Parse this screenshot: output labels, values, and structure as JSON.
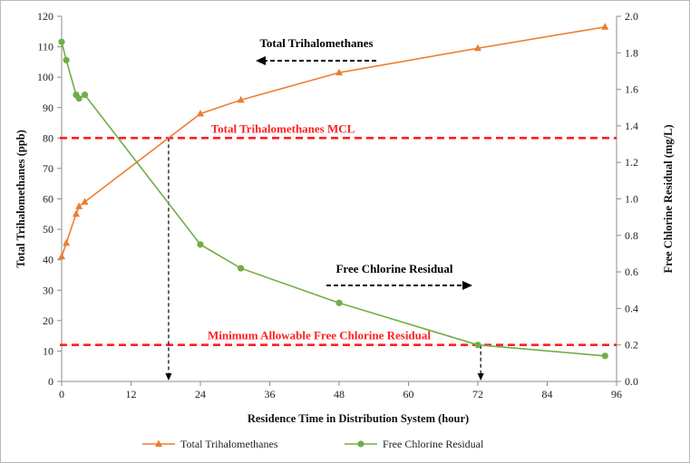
{
  "chart_data": {
    "type": "line",
    "title": "",
    "xlabel": "Residence Time in Distribution System (hour)",
    "ylabel_left": "Total Trihalomethanes (ppb)",
    "ylabel_right": "Free Chlorine Residual (mg/L)",
    "xlim": [
      0,
      96
    ],
    "ylim_left": [
      0,
      120
    ],
    "ylim_right": [
      0,
      2.0
    ],
    "x_ticks": [
      "0",
      "12",
      "24",
      "36",
      "48",
      "60",
      "72",
      "84",
      "96"
    ],
    "y_left_ticks": [
      "0",
      "10",
      "20",
      "30",
      "40",
      "50",
      "60",
      "70",
      "80",
      "90",
      "100",
      "110",
      "120"
    ],
    "y_right_ticks": [
      "0.0",
      "0.2",
      "0.4",
      "0.6",
      "0.8",
      "1.0",
      "1.2",
      "1.4",
      "1.6",
      "1.8",
      "2.0"
    ],
    "grid": false,
    "legend_position": "bottom",
    "series": [
      {
        "name": "Total Trihalomethanes",
        "axis": "left",
        "color": "#ed7d31",
        "marker": "triangle",
        "x": [
          0,
          0.8,
          2.5,
          3.0,
          4.0,
          24,
          31,
          48,
          72,
          94
        ],
        "y": [
          41,
          45.5,
          55,
          57.5,
          59,
          88,
          92.5,
          101.5,
          109.5,
          116.5
        ]
      },
      {
        "name": "Free Chlorine Residual",
        "axis": "right",
        "color": "#70ad47",
        "marker": "circle",
        "x": [
          0,
          0.8,
          2.5,
          3.0,
          4.0,
          24,
          31,
          48,
          72,
          94
        ],
        "y": [
          1.86,
          1.76,
          1.57,
          1.55,
          1.57,
          0.75,
          0.62,
          0.43,
          0.2,
          0.14
        ]
      }
    ],
    "reference_lines": [
      {
        "label": "Total Trihalomethanes MCL",
        "axis": "left",
        "y": 80,
        "color": "#ff1f1f"
      },
      {
        "label": "Minimum Allowable Free Chlorine Residual",
        "axis": "right",
        "y": 0.2,
        "color": "#ff1f1f"
      }
    ],
    "drop_lines": [
      {
        "x": 18.5,
        "y": 80,
        "axis": "left"
      },
      {
        "x": 72.5,
        "y": 0.2,
        "axis": "right"
      }
    ],
    "annotations": [
      {
        "text": "Total Trihalomethanes",
        "arrow": "left",
        "x": 42,
        "y": 111.5
      },
      {
        "text": "Free Chlorine Residual",
        "arrow": "right",
        "x": 60,
        "y": 32
      }
    ]
  }
}
